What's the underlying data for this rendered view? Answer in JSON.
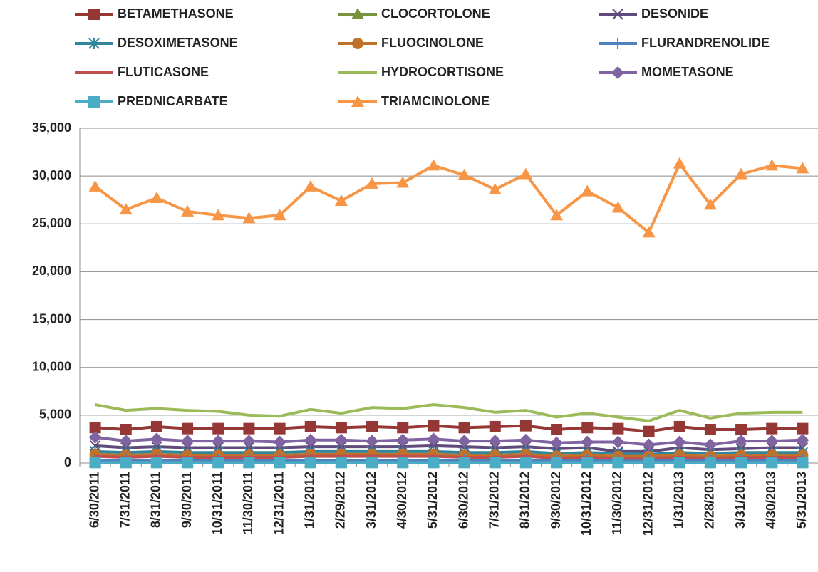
{
  "chart_data": {
    "type": "line",
    "categories": [
      "6/30/2011",
      "7/31/2011",
      "8/31/2011",
      "9/30/2011",
      "10/31/2011",
      "11/30/2011",
      "12/31/2011",
      "1/31/2012",
      "2/29/2012",
      "3/31/2012",
      "4/30/2012",
      "5/31/2012",
      "6/30/2012",
      "7/31/2012",
      "8/31/2012",
      "9/30/2012",
      "10/31/2012",
      "11/30/2012",
      "12/31/2012",
      "1/31/2013",
      "2/28/2013",
      "3/31/2013",
      "4/30/2013",
      "5/31/2013"
    ],
    "series": [
      {
        "name": "BETAMETHASONE",
        "color": "#953735",
        "marker": "square",
        "values": [
          3700,
          3500,
          3800,
          3600,
          3600,
          3600,
          3600,
          3800,
          3700,
          3800,
          3700,
          3900,
          3700,
          3800,
          3900,
          3500,
          3700,
          3600,
          3300,
          3800,
          3500,
          3500,
          3600,
          3600
        ]
      },
      {
        "name": "CLOCORTOLONE",
        "color": "#77933c",
        "marker": "triangle",
        "values": [
          100,
          100,
          100,
          100,
          100,
          100,
          100,
          100,
          100,
          100,
          100,
          100,
          100,
          100,
          100,
          100,
          100,
          100,
          100,
          100,
          100,
          100,
          100,
          100
        ]
      },
      {
        "name": "DESONIDE",
        "color": "#604a7b",
        "marker": "x",
        "values": [
          1800,
          1600,
          1700,
          1600,
          1600,
          1600,
          1600,
          1700,
          1700,
          1700,
          1700,
          1800,
          1700,
          1600,
          1700,
          1500,
          1600,
          1200,
          1200,
          1600,
          1400,
          1500,
          1600,
          1600
        ]
      },
      {
        "name": "DESOXIMETASONE",
        "color": "#31859c",
        "marker": "star",
        "values": [
          1200,
          1100,
          1200,
          1100,
          1100,
          1100,
          1100,
          1200,
          1200,
          1200,
          1200,
          1200,
          1100,
          1100,
          1200,
          1000,
          1100,
          1000,
          900,
          1100,
          1000,
          1100,
          1100,
          1100
        ]
      },
      {
        "name": "FLUOCINOLONE",
        "color": "#c0722a",
        "marker": "circle",
        "values": [
          900,
          800,
          900,
          800,
          800,
          800,
          800,
          900,
          900,
          900,
          900,
          900,
          800,
          800,
          900,
          700,
          800,
          700,
          700,
          800,
          700,
          800,
          800,
          800
        ]
      },
      {
        "name": "FLURANDRENOLIDE",
        "color": "#4f81bd",
        "marker": "plus",
        "values": [
          300,
          300,
          300,
          300,
          300,
          300,
          300,
          300,
          300,
          300,
          300,
          300,
          300,
          300,
          300,
          300,
          300,
          300,
          300,
          300,
          300,
          300,
          300,
          300
        ]
      },
      {
        "name": "FLUTICASONE",
        "color": "#c0504d",
        "marker": "none",
        "values": [
          700,
          600,
          700,
          600,
          600,
          600,
          600,
          700,
          700,
          700,
          700,
          700,
          600,
          600,
          700,
          500,
          600,
          500,
          500,
          600,
          500,
          600,
          600,
          600
        ]
      },
      {
        "name": "HYDROCORTISONE",
        "color": "#9bbb59",
        "marker": "none",
        "values": [
          6100,
          5500,
          5700,
          5500,
          5400,
          5000,
          4900,
          5600,
          5200,
          5800,
          5700,
          6100,
          5800,
          5300,
          5500,
          4800,
          5200,
          4800,
          4400,
          5500,
          4700,
          5200,
          5300,
          5300
        ]
      },
      {
        "name": "MOMETASONE",
        "color": "#8064a2",
        "marker": "diamond",
        "values": [
          2700,
          2300,
          2500,
          2300,
          2300,
          2300,
          2200,
          2400,
          2400,
          2300,
          2400,
          2500,
          2300,
          2300,
          2400,
          2100,
          2200,
          2200,
          1900,
          2200,
          1900,
          2300,
          2300,
          2400
        ]
      },
      {
        "name": "PREDNICARBATE",
        "color": "#4bacc6",
        "marker": "square",
        "values": [
          50,
          50,
          50,
          50,
          50,
          50,
          50,
          50,
          50,
          50,
          50,
          50,
          50,
          50,
          50,
          50,
          50,
          50,
          50,
          50,
          50,
          50,
          50,
          50
        ]
      },
      {
        "name": "TRIAMCINOLONE",
        "color": "#f79646",
        "marker": "triangle",
        "values": [
          28900,
          26500,
          27700,
          26300,
          25900,
          25600,
          25900,
          28900,
          27400,
          29200,
          29300,
          31100,
          30100,
          28600,
          30200,
          25900,
          28400,
          26700,
          24100,
          31300,
          27000,
          30200,
          31100,
          30800
        ]
      }
    ],
    "ylim": [
      0,
      35000
    ],
    "yticks": [
      0,
      {
        "value": 5000,
        "label": "5,000"
      },
      {
        "value": 10000,
        "label": "10,000"
      },
      {
        "value": 15000,
        "label": "15,000"
      },
      {
        "value": 20000,
        "label": "20,000"
      },
      {
        "value": 25000,
        "label": "25,000"
      },
      {
        "value": 30000,
        "label": "30,000"
      },
      {
        "value": 35000,
        "label": "35,000"
      }
    ],
    "grid": true,
    "legend": "top"
  }
}
